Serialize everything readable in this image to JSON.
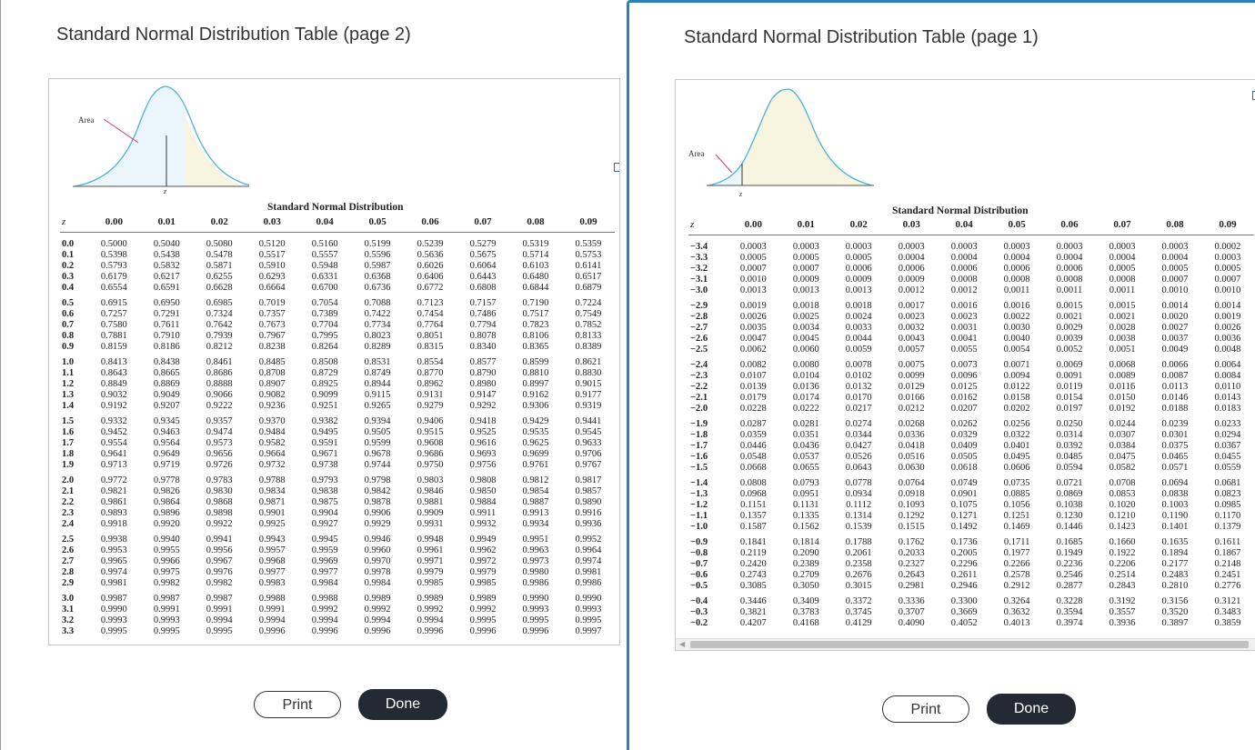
{
  "left": {
    "title": "Standard Normal Distribution Table (page 2)",
    "table_title": "Standard Normal Distribution",
    "area_label": "Area",
    "z_label": "z",
    "headers": [
      "z",
      "0.00",
      "0.01",
      "0.02",
      "0.03",
      "0.04",
      "0.05",
      "0.06",
      "0.07",
      "0.08",
      "0.09"
    ],
    "groups": [
      [
        [
          "0.0",
          "0.5000",
          "0.5040",
          "0.5080",
          "0.5120",
          "0.5160",
          "0.5199",
          "0.5239",
          "0.5279",
          "0.5319",
          "0.5359"
        ],
        [
          "0.1",
          "0.5398",
          "0.5438",
          "0.5478",
          "0.5517",
          "0.5557",
          "0.5596",
          "0.5636",
          "0.5675",
          "0.5714",
          "0.5753"
        ],
        [
          "0.2",
          "0.5793",
          "0.5832",
          "0.5871",
          "0.5910",
          "0.5948",
          "0.5987",
          "0.6026",
          "0.6064",
          "0.6103",
          "0.6141"
        ],
        [
          "0.3",
          "0.6179",
          "0.6217",
          "0.6255",
          "0.6293",
          "0.6331",
          "0.6368",
          "0.6406",
          "0.6443",
          "0.6480",
          "0.6517"
        ],
        [
          "0.4",
          "0.6554",
          "0.6591",
          "0.6628",
          "0.6664",
          "0.6700",
          "0.6736",
          "0.6772",
          "0.6808",
          "0.6844",
          "0.6879"
        ]
      ],
      [
        [
          "0.5",
          "0.6915",
          "0.6950",
          "0.6985",
          "0.7019",
          "0.7054",
          "0.7088",
          "0.7123",
          "0.7157",
          "0.7190",
          "0.7224"
        ],
        [
          "0.6",
          "0.7257",
          "0.7291",
          "0.7324",
          "0.7357",
          "0.7389",
          "0.7422",
          "0.7454",
          "0.7486",
          "0.7517",
          "0.7549"
        ],
        [
          "0.7",
          "0.7580",
          "0.7611",
          "0.7642",
          "0.7673",
          "0.7704",
          "0.7734",
          "0.7764",
          "0.7794",
          "0.7823",
          "0.7852"
        ],
        [
          "0.8",
          "0.7881",
          "0.7910",
          "0.7939",
          "0.7967",
          "0.7995",
          "0.8023",
          "0.8051",
          "0.8078",
          "0.8106",
          "0.8133"
        ],
        [
          "0.9",
          "0.8159",
          "0.8186",
          "0.8212",
          "0.8238",
          "0.8264",
          "0.8289",
          "0.8315",
          "0.8340",
          "0.8365",
          "0.8389"
        ]
      ],
      [
        [
          "1.0",
          "0.8413",
          "0.8438",
          "0.8461",
          "0.8485",
          "0.8508",
          "0.8531",
          "0.8554",
          "0.8577",
          "0.8599",
          "0.8621"
        ],
        [
          "1.1",
          "0.8643",
          "0.8665",
          "0.8686",
          "0.8708",
          "0.8729",
          "0.8749",
          "0.8770",
          "0.8790",
          "0.8810",
          "0.8830"
        ],
        [
          "1.2",
          "0.8849",
          "0.8869",
          "0.8888",
          "0.8907",
          "0.8925",
          "0.8944",
          "0.8962",
          "0.8980",
          "0.8997",
          "0.9015"
        ],
        [
          "1.3",
          "0.9032",
          "0.9049",
          "0.9066",
          "0.9082",
          "0.9099",
          "0.9115",
          "0.9131",
          "0.9147",
          "0.9162",
          "0.9177"
        ],
        [
          "1.4",
          "0.9192",
          "0.9207",
          "0.9222",
          "0.9236",
          "0.9251",
          "0.9265",
          "0.9279",
          "0.9292",
          "0.9306",
          "0.9319"
        ]
      ],
      [
        [
          "1.5",
          "0.9332",
          "0.9345",
          "0.9357",
          "0.9370",
          "0.9382",
          "0.9394",
          "0.9406",
          "0.9418",
          "0.9429",
          "0.9441"
        ],
        [
          "1.6",
          "0.9452",
          "0.9463",
          "0.9474",
          "0.9484",
          "0.9495",
          "0.9505",
          "0.9515",
          "0.9525",
          "0.9535",
          "0.9545"
        ],
        [
          "1.7",
          "0.9554",
          "0.9564",
          "0.9573",
          "0.9582",
          "0.9591",
          "0.9599",
          "0.9608",
          "0.9616",
          "0.9625",
          "0.9633"
        ],
        [
          "1.8",
          "0.9641",
          "0.9649",
          "0.9656",
          "0.9664",
          "0.9671",
          "0.9678",
          "0.9686",
          "0.9693",
          "0.9699",
          "0.9706"
        ],
        [
          "1.9",
          "0.9713",
          "0.9719",
          "0.9726",
          "0.9732",
          "0.9738",
          "0.9744",
          "0.9750",
          "0.9756",
          "0.9761",
          "0.9767"
        ]
      ],
      [
        [
          "2.0",
          "0.9772",
          "0.9778",
          "0.9783",
          "0.9788",
          "0.9793",
          "0.9798",
          "0.9803",
          "0.9808",
          "0.9812",
          "0.9817"
        ],
        [
          "2.1",
          "0.9821",
          "0.9826",
          "0.9830",
          "0.9834",
          "0.9838",
          "0.9842",
          "0.9846",
          "0.9850",
          "0.9854",
          "0.9857"
        ],
        [
          "2.2",
          "0.9861",
          "0.9864",
          "0.9868",
          "0.9871",
          "0.9875",
          "0.9878",
          "0.9881",
          "0.9884",
          "0.9887",
          "0.9890"
        ],
        [
          "2.3",
          "0.9893",
          "0.9896",
          "0.9898",
          "0.9901",
          "0.9904",
          "0.9906",
          "0.9909",
          "0.9911",
          "0.9913",
          "0.9916"
        ],
        [
          "2.4",
          "0.9918",
          "0.9920",
          "0.9922",
          "0.9925",
          "0.9927",
          "0.9929",
          "0.9931",
          "0.9932",
          "0.9934",
          "0.9936"
        ]
      ],
      [
        [
          "2.5",
          "0.9938",
          "0.9940",
          "0.9941",
          "0.9943",
          "0.9945",
          "0.9946",
          "0.9948",
          "0.9949",
          "0.9951",
          "0.9952"
        ],
        [
          "2.6",
          "0.9953",
          "0.9955",
          "0.9956",
          "0.9957",
          "0.9959",
          "0.9960",
          "0.9961",
          "0.9962",
          "0.9963",
          "0.9964"
        ],
        [
          "2.7",
          "0.9965",
          "0.9966",
          "0.9967",
          "0.9968",
          "0.9969",
          "0.9970",
          "0.9971",
          "0.9972",
          "0.9973",
          "0.9974"
        ],
        [
          "2.8",
          "0.9974",
          "0.9975",
          "0.9976",
          "0.9977",
          "0.9977",
          "0.9978",
          "0.9979",
          "0.9979",
          "0.9980",
          "0.9981"
        ],
        [
          "2.9",
          "0.9981",
          "0.9982",
          "0.9982",
          "0.9983",
          "0.9984",
          "0.9984",
          "0.9985",
          "0.9985",
          "0.9986",
          "0.9986"
        ]
      ],
      [
        [
          "3.0",
          "0.9987",
          "0.9987",
          "0.9987",
          "0.9988",
          "0.9988",
          "0.9989",
          "0.9989",
          "0.9989",
          "0.9990",
          "0.9990"
        ],
        [
          "3.1",
          "0.9990",
          "0.9991",
          "0.9991",
          "0.9991",
          "0.9992",
          "0.9992",
          "0.9992",
          "0.9992",
          "0.9993",
          "0.9993"
        ],
        [
          "3.2",
          "0.9993",
          "0.9993",
          "0.9994",
          "0.9994",
          "0.9994",
          "0.9994",
          "0.9994",
          "0.9995",
          "0.9995",
          "0.9995"
        ],
        [
          "3.3",
          "0.9995",
          "0.9995",
          "0.9995",
          "0.9996",
          "0.9996",
          "0.9996",
          "0.9996",
          "0.9996",
          "0.9996",
          "0.9997"
        ]
      ]
    ],
    "print_label": "Print",
    "done_label": "Done"
  },
  "right": {
    "title": "Standard Normal Distribution Table (page 1)",
    "table_title": "Standard Normal Distribution",
    "area_label": "Area",
    "z_label": "z",
    "headers": [
      "z",
      "0.00",
      "0.01",
      "0.02",
      "0.03",
      "0.04",
      "0.05",
      "0.06",
      "0.07",
      "0.08",
      "0.09"
    ],
    "groups": [
      [
        [
          "−3.4",
          "0.0003",
          "0.0003",
          "0.0003",
          "0.0003",
          "0.0003",
          "0.0003",
          "0.0003",
          "0.0003",
          "0.0003",
          "0.0002"
        ],
        [
          "−3.3",
          "0.0005",
          "0.0005",
          "0.0005",
          "0.0004",
          "0.0004",
          "0.0004",
          "0.0004",
          "0.0004",
          "0.0004",
          "0.0003"
        ],
        [
          "−3.2",
          "0.0007",
          "0.0007",
          "0.0006",
          "0.0006",
          "0.0006",
          "0.0006",
          "0.0006",
          "0.0005",
          "0.0005",
          "0.0005"
        ],
        [
          "−3.1",
          "0.0010",
          "0.0009",
          "0.0009",
          "0.0009",
          "0.0008",
          "0.0008",
          "0.0008",
          "0.0008",
          "0.0007",
          "0.0007"
        ],
        [
          "−3.0",
          "0.0013",
          "0.0013",
          "0.0013",
          "0.0012",
          "0.0012",
          "0.0011",
          "0.0011",
          "0.0011",
          "0.0010",
          "0.0010"
        ]
      ],
      [
        [
          "−2.9",
          "0.0019",
          "0.0018",
          "0.0018",
          "0.0017",
          "0.0016",
          "0.0016",
          "0.0015",
          "0.0015",
          "0.0014",
          "0.0014"
        ],
        [
          "−2.8",
          "0.0026",
          "0.0025",
          "0.0024",
          "0.0023",
          "0.0023",
          "0.0022",
          "0.0021",
          "0.0021",
          "0.0020",
          "0.0019"
        ],
        [
          "−2.7",
          "0.0035",
          "0.0034",
          "0.0033",
          "0.0032",
          "0.0031",
          "0.0030",
          "0.0029",
          "0.0028",
          "0.0027",
          "0.0026"
        ],
        [
          "−2.6",
          "0.0047",
          "0.0045",
          "0.0044",
          "0.0043",
          "0.0041",
          "0.0040",
          "0.0039",
          "0.0038",
          "0.0037",
          "0.0036"
        ],
        [
          "−2.5",
          "0.0062",
          "0.0060",
          "0.0059",
          "0.0057",
          "0.0055",
          "0.0054",
          "0.0052",
          "0.0051",
          "0.0049",
          "0.0048"
        ]
      ],
      [
        [
          "−2.4",
          "0.0082",
          "0.0080",
          "0.0078",
          "0.0075",
          "0.0073",
          "0.0071",
          "0.0069",
          "0.0068",
          "0.0066",
          "0.0064"
        ],
        [
          "−2.3",
          "0.0107",
          "0.0104",
          "0.0102",
          "0.0099",
          "0.0096",
          "0.0094",
          "0.0091",
          "0.0089",
          "0.0087",
          "0.0084"
        ],
        [
          "−2.2",
          "0.0139",
          "0.0136",
          "0.0132",
          "0.0129",
          "0.0125",
          "0.0122",
          "0.0119",
          "0.0116",
          "0.0113",
          "0.0110"
        ],
        [
          "−2.1",
          "0.0179",
          "0.0174",
          "0.0170",
          "0.0166",
          "0.0162",
          "0.0158",
          "0.0154",
          "0.0150",
          "0.0146",
          "0.0143"
        ],
        [
          "−2.0",
          "0.0228",
          "0.0222",
          "0.0217",
          "0.0212",
          "0.0207",
          "0.0202",
          "0.0197",
          "0.0192",
          "0.0188",
          "0.0183"
        ]
      ],
      [
        [
          "−1.9",
          "0.0287",
          "0.0281",
          "0.0274",
          "0.0268",
          "0.0262",
          "0.0256",
          "0.0250",
          "0.0244",
          "0.0239",
          "0.0233"
        ],
        [
          "−1.8",
          "0.0359",
          "0.0351",
          "0.0344",
          "0.0336",
          "0.0329",
          "0.0322",
          "0.0314",
          "0.0307",
          "0.0301",
          "0.0294"
        ],
        [
          "−1.7",
          "0.0446",
          "0.0436",
          "0.0427",
          "0.0418",
          "0.0409",
          "0.0401",
          "0.0392",
          "0.0384",
          "0.0375",
          "0.0367"
        ],
        [
          "−1.6",
          "0.0548",
          "0.0537",
          "0.0526",
          "0.0516",
          "0.0505",
          "0.0495",
          "0.0485",
          "0.0475",
          "0.0465",
          "0.0455"
        ],
        [
          "−1.5",
          "0.0668",
          "0.0655",
          "0.0643",
          "0.0630",
          "0.0618",
          "0.0606",
          "0.0594",
          "0.0582",
          "0.0571",
          "0.0559"
        ]
      ],
      [
        [
          "−1.4",
          "0.0808",
          "0.0793",
          "0.0778",
          "0.0764",
          "0.0749",
          "0.0735",
          "0.0721",
          "0.0708",
          "0.0694",
          "0.0681"
        ],
        [
          "−1.3",
          "0.0968",
          "0.0951",
          "0.0934",
          "0.0918",
          "0.0901",
          "0.0885",
          "0.0869",
          "0.0853",
          "0.0838",
          "0.0823"
        ],
        [
          "−1.2",
          "0.1151",
          "0.1131",
          "0.1112",
          "0.1093",
          "0.1075",
          "0.1056",
          "0.1038",
          "0.1020",
          "0.1003",
          "0.0985"
        ],
        [
          "−1.1",
          "0.1357",
          "0.1335",
          "0.1314",
          "0.1292",
          "0.1271",
          "0.1251",
          "0.1230",
          "0.1210",
          "0.1190",
          "0.1170"
        ],
        [
          "−1.0",
          "0.1587",
          "0.1562",
          "0.1539",
          "0.1515",
          "0.1492",
          "0.1469",
          "0.1446",
          "0.1423",
          "0.1401",
          "0.1379"
        ]
      ],
      [
        [
          "−0.9",
          "0.1841",
          "0.1814",
          "0.1788",
          "0.1762",
          "0.1736",
          "0.1711",
          "0.1685",
          "0.1660",
          "0.1635",
          "0.1611"
        ],
        [
          "−0.8",
          "0.2119",
          "0.2090",
          "0.2061",
          "0.2033",
          "0.2005",
          "0.1977",
          "0.1949",
          "0.1922",
          "0.1894",
          "0.1867"
        ],
        [
          "−0.7",
          "0.2420",
          "0.2389",
          "0.2358",
          "0.2327",
          "0.2296",
          "0.2266",
          "0.2236",
          "0.2206",
          "0.2177",
          "0.2148"
        ],
        [
          "−0.6",
          "0.2743",
          "0.2709",
          "0.2676",
          "0.2643",
          "0.2611",
          "0.2578",
          "0.2546",
          "0.2514",
          "0.2483",
          "0.2451"
        ],
        [
          "−0.5",
          "0.3085",
          "0.3050",
          "0.3015",
          "0.2981",
          "0.2946",
          "0.2912",
          "0.2877",
          "0.2843",
          "0.2810",
          "0.2776"
        ]
      ],
      [
        [
          "−0.4",
          "0.3446",
          "0.3409",
          "0.3372",
          "0.3336",
          "0.3300",
          "0.3264",
          "0.3228",
          "0.3192",
          "0.3156",
          "0.3121"
        ],
        [
          "−0.3",
          "0.3821",
          "0.3783",
          "0.3745",
          "0.3707",
          "0.3669",
          "0.3632",
          "0.3594",
          "0.3557",
          "0.3520",
          "0.3483"
        ],
        [
          "−0.2",
          "0.4207",
          "0.4168",
          "0.4129",
          "0.4090",
          "0.4052",
          "0.4013",
          "0.3974",
          "0.3936",
          "0.3897",
          "0.3859"
        ]
      ]
    ],
    "print_label": "Print",
    "done_label": "Done"
  }
}
